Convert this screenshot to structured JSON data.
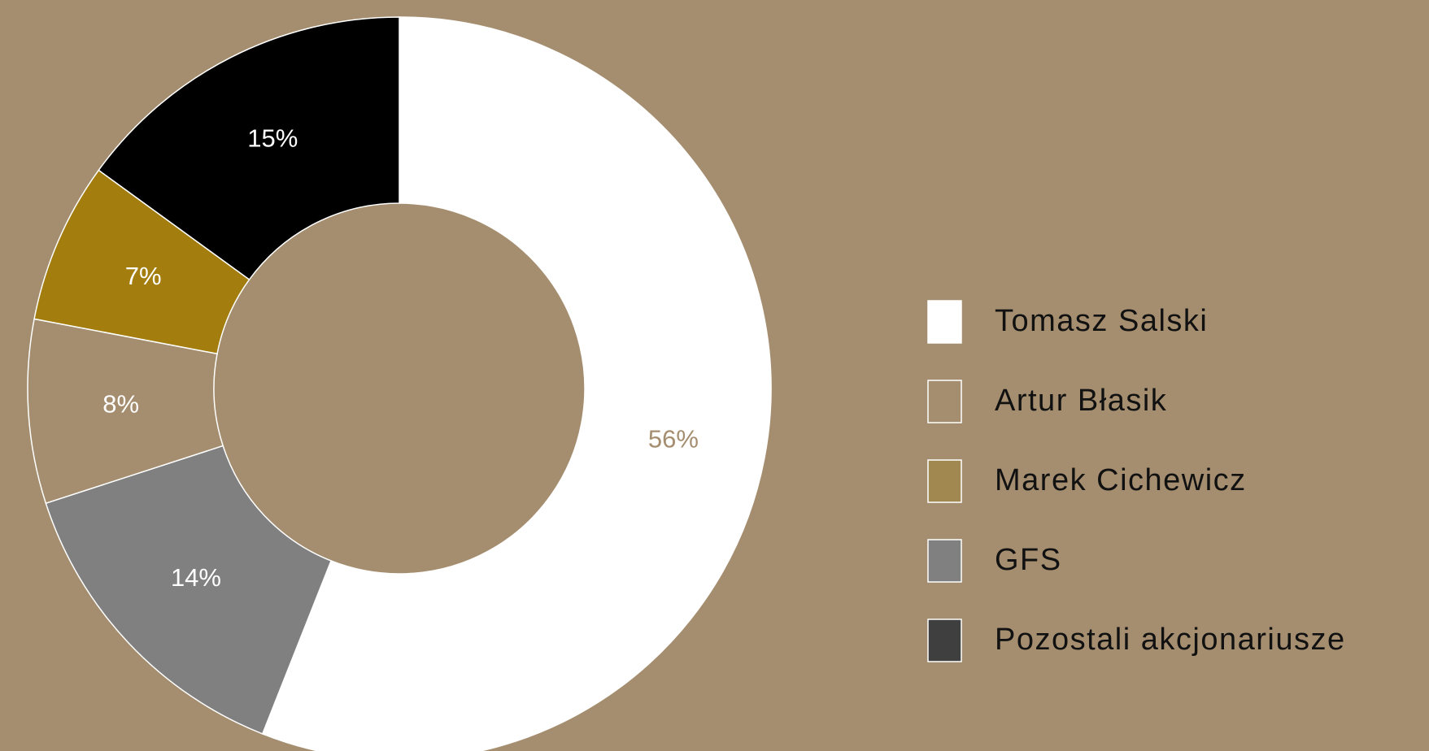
{
  "chart_data": {
    "type": "donut",
    "categories": [
      "Tomasz Salski",
      "GFS",
      "Artur Błasik",
      "Marek Cichewicz",
      "Pozostali akcjonariusze"
    ],
    "values": [
      56,
      14,
      8,
      7,
      15
    ],
    "value_labels": [
      "56%",
      "14%",
      "8%",
      "7%",
      "15%"
    ],
    "colors": [
      "#ffffff",
      "#808080",
      "#a58e6f",
      "#a37d0e",
      "#000000"
    ],
    "label_colors": [
      "#a58e6f",
      "#ffffff",
      "#ffffff",
      "#ffffff",
      "#ffffff"
    ],
    "legend_order": [
      0,
      2,
      3,
      1,
      4
    ],
    "legend_colors": [
      "#ffffff",
      "#808080",
      "#a58e6f",
      "#a08850",
      "#3f3f3f"
    ],
    "legend": "right"
  }
}
